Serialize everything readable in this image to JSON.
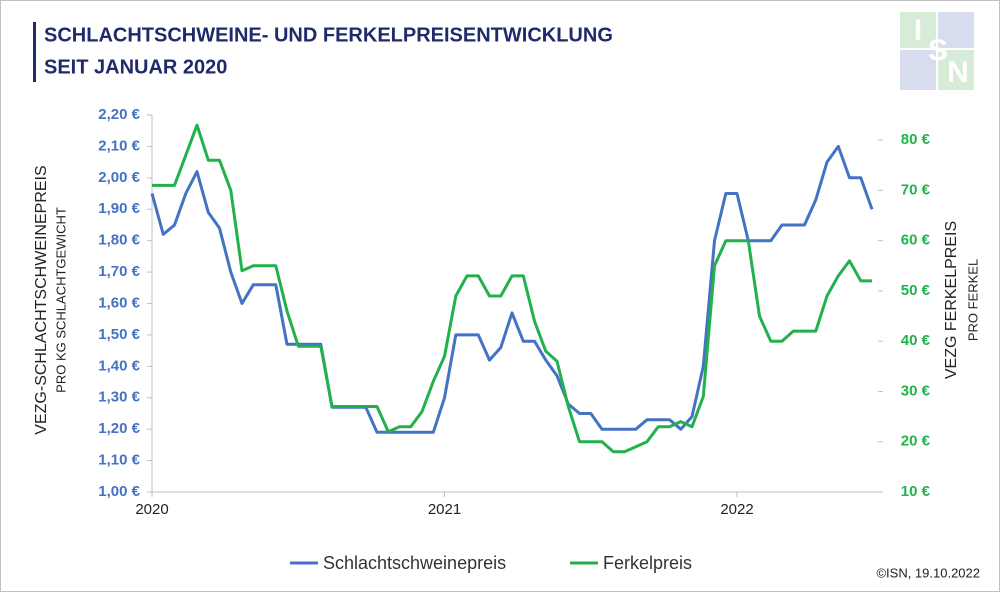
{
  "chart_data": {
    "type": "line",
    "title": [
      "SCHLACHTSCHWEINE- UND FERKELPREISENTWICKLUNG",
      "SEIT JANUAR 2020"
    ],
    "logo": [
      "I",
      "S",
      "N"
    ],
    "y_label": [
      "VEZG-SCHLACHTSCHWEINEPREIS",
      "PRO KG SCHLACHTGEWICHT"
    ],
    "y2_label": [
      "VEZG FERKELPREIS",
      "PRO FERKEL"
    ],
    "source": "©ISN, 19.10.2022",
    "categories": [
      "2020",
      null,
      null,
      null,
      null,
      null,
      null,
      null,
      null,
      null,
      null,
      null,
      null,
      null,
      null,
      null,
      null,
      null,
      null,
      null,
      null,
      null,
      null,
      null,
      null,
      null,
      "2021",
      null,
      null,
      null,
      null,
      null,
      null,
      null,
      null,
      null,
      null,
      null,
      null,
      null,
      null,
      null,
      null,
      null,
      null,
      null,
      null,
      null,
      null,
      null,
      null,
      null,
      "2022",
      null,
      null,
      null,
      null,
      null,
      null,
      null,
      null,
      null,
      null,
      null,
      null
    ],
    "ylim": [
      1.0,
      2.2
    ],
    "yticks": [
      {
        "value": 1.0,
        "label": "1,00 €"
      },
      {
        "value": 1.1,
        "label": "1,10 €"
      },
      {
        "value": 1.2,
        "label": "1,20 €"
      },
      {
        "value": 1.3,
        "label": "1,30 €"
      },
      {
        "value": 1.4,
        "label": "1,40 €"
      },
      {
        "value": 1.5,
        "label": "1,50 €"
      },
      {
        "value": 1.6,
        "label": "1,60 €"
      },
      {
        "value": 1.7,
        "label": "1,70 €"
      },
      {
        "value": 1.8,
        "label": "1,80 €"
      },
      {
        "value": 1.9,
        "label": "1,90 €"
      },
      {
        "value": 2.0,
        "label": "2,00 €"
      },
      {
        "value": 2.1,
        "label": "2,10 €"
      },
      {
        "value": 2.2,
        "label": "2,20 €"
      }
    ],
    "y2lim": [
      10,
      85
    ],
    "y2ticks": [
      {
        "value": 10,
        "label": "10 €"
      },
      {
        "value": 20,
        "label": "20 €"
      },
      {
        "value": 30,
        "label": "30 €"
      },
      {
        "value": 40,
        "label": "40 €"
      },
      {
        "value": 50,
        "label": "50 €"
      },
      {
        "value": 60,
        "label": "60 €"
      },
      {
        "value": 70,
        "label": "70 €"
      },
      {
        "value": 80,
        "label": "80 €"
      }
    ],
    "grid": false,
    "series": [
      {
        "name": "Schlachtschweinepreis",
        "color": "#4472c4",
        "axis": "y",
        "values": [
          1.95,
          1.82,
          1.85,
          1.95,
          2.02,
          1.89,
          1.84,
          1.7,
          1.6,
          1.66,
          1.66,
          1.66,
          1.47,
          1.47,
          1.47,
          1.47,
          1.27,
          1.27,
          1.27,
          1.27,
          1.19,
          1.19,
          1.19,
          1.19,
          1.19,
          1.19,
          1.3,
          1.5,
          1.5,
          1.5,
          1.42,
          1.46,
          1.57,
          1.48,
          1.48,
          1.42,
          1.37,
          1.28,
          1.25,
          1.25,
          1.2,
          1.2,
          1.2,
          1.2,
          1.23,
          1.23,
          1.23,
          1.2,
          1.24,
          1.4,
          1.8,
          1.95,
          1.95,
          1.8,
          1.8,
          1.8,
          1.85,
          1.85,
          1.85,
          1.93,
          2.05,
          2.1,
          2.0,
          2.0,
          1.9
        ]
      },
      {
        "name": "Ferkelpreis",
        "color": "#22b14c",
        "axis": "y2",
        "values": [
          71,
          71,
          71,
          77,
          83,
          76,
          76,
          70,
          54,
          55,
          55,
          55,
          46,
          39,
          39,
          39,
          27,
          27,
          27,
          27,
          27,
          22,
          23,
          23,
          26,
          32,
          37,
          49,
          53,
          53,
          49,
          49,
          53,
          53,
          44,
          38,
          36,
          27,
          20,
          20,
          20,
          18,
          18,
          19,
          20,
          23,
          23,
          24,
          23,
          29,
          55,
          60,
          60,
          60,
          45,
          40,
          40,
          42,
          42,
          42,
          49,
          53,
          56,
          52,
          52
        ]
      }
    ]
  }
}
